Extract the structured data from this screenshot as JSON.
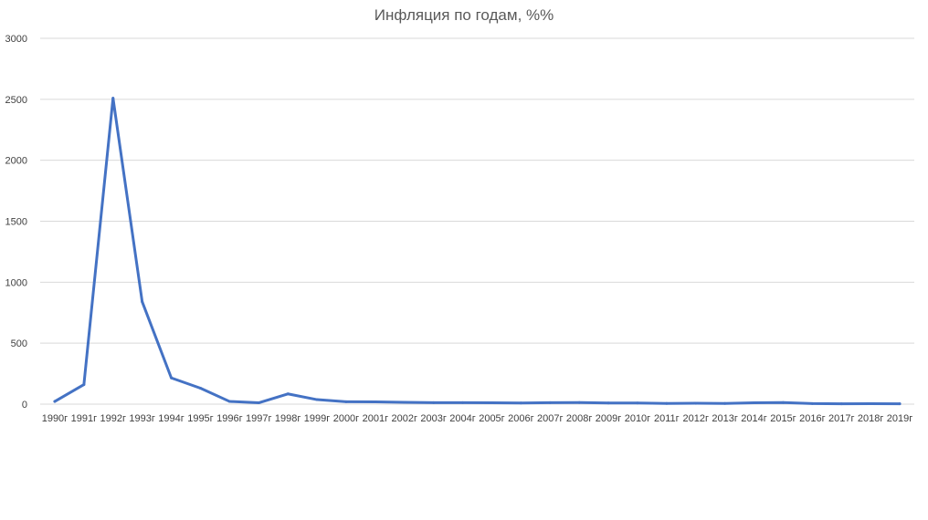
{
  "chart_data": {
    "type": "line",
    "title": "Инфляция по годам, %%",
    "xlabel": "",
    "ylabel": "",
    "ylim": [
      0,
      3000
    ],
    "yticks": [
      0,
      500,
      1000,
      1500,
      2000,
      2500,
      3000
    ],
    "grid": true,
    "legend": "none",
    "categories": [
      "1990г",
      "1991г",
      "1992г",
      "1993г",
      "1994г",
      "1995г",
      "1996г",
      "1997г",
      "1998г",
      "1999г",
      "2000г",
      "2001г",
      "2002г",
      "2003г",
      "2004г",
      "2005г",
      "2006г",
      "2007г",
      "2008г",
      "2009г",
      "2010г",
      "2011г",
      "2012г",
      "2013г",
      "2014г",
      "2015г",
      "2016г",
      "2017г",
      "2018г",
      "2019г"
    ],
    "series": [
      {
        "color": "#4472c4",
        "values": [
          22,
          160,
          2509,
          840,
          215,
          131,
          22,
          11,
          84,
          37,
          20,
          19,
          15,
          12,
          12,
          11,
          9,
          12,
          13,
          9,
          9,
          6,
          7,
          6,
          11,
          13,
          5,
          3,
          4,
          3
        ]
      }
    ]
  }
}
